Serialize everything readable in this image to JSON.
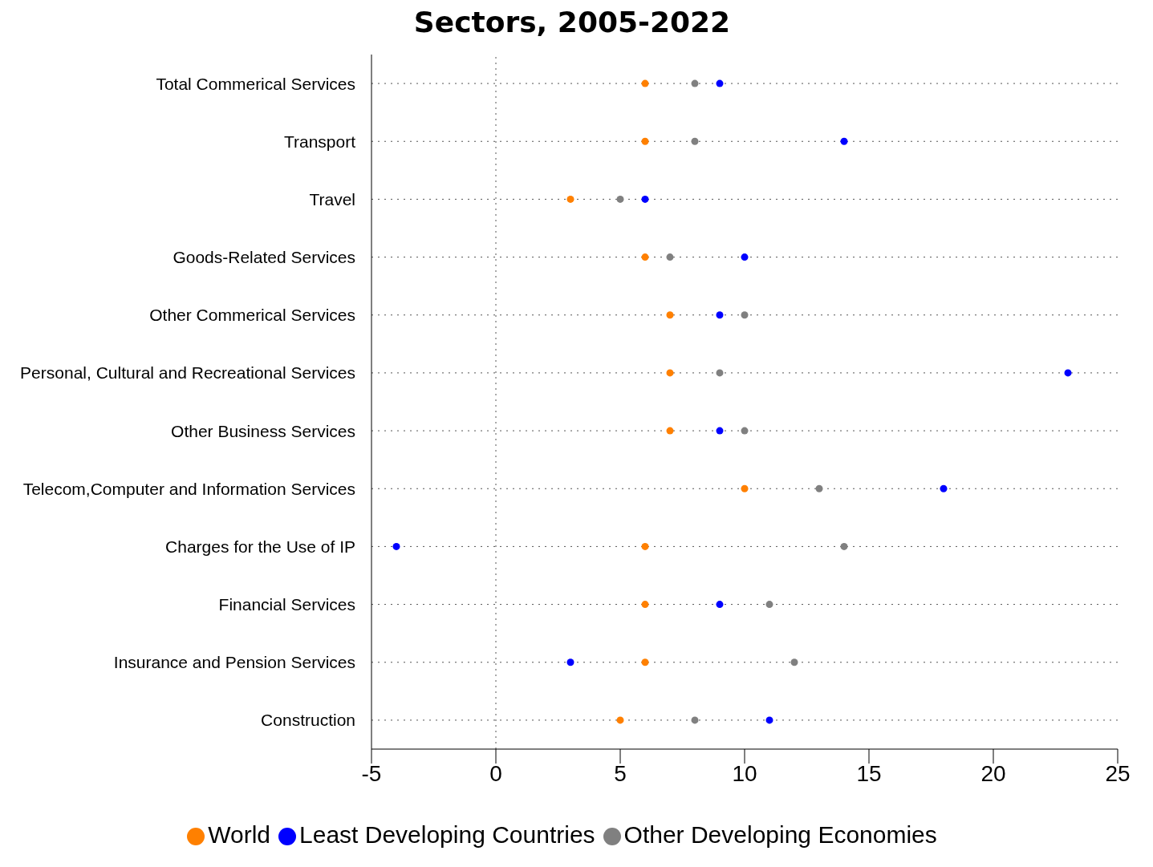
{
  "chart_data": {
    "type": "scatter",
    "title": "Sectors, 2005-2022",
    "categories": [
      "Total Commerical Services",
      "Transport",
      "Travel",
      "Goods-Related Services",
      "Other Commerical Services",
      "Personal, Cultural and Recreational Services",
      "Other Business Services",
      "Telecom,Computer and Information Services",
      "Charges for the Use of IP",
      "Financial Services",
      "Insurance and Pension Services",
      "Construction"
    ],
    "series": [
      {
        "name": "World",
        "color": "#ff8000",
        "values": [
          6,
          6,
          3,
          6,
          7,
          7,
          7,
          10,
          6,
          6,
          6,
          5
        ]
      },
      {
        "name": "Least Developing Countries",
        "color": "#0000ff",
        "values": [
          9,
          14,
          6,
          10,
          9,
          23,
          9,
          18,
          -4,
          9,
          3,
          11
        ]
      },
      {
        "name": "Other Developing Economies",
        "color": "#808080",
        "values": [
          8,
          8,
          5,
          7,
          10,
          9,
          10,
          13,
          14,
          11,
          12,
          8
        ]
      }
    ],
    "orientation": "horizontal",
    "xlim": [
      -5,
      25
    ],
    "xticks": [
      -5,
      0,
      5,
      10,
      15,
      20,
      25
    ],
    "grid": "y",
    "legend": "bottom",
    "marker": "circle",
    "ref_lines": [
      {
        "axis": "x",
        "value": 0,
        "line_style": "dotted"
      }
    ]
  }
}
